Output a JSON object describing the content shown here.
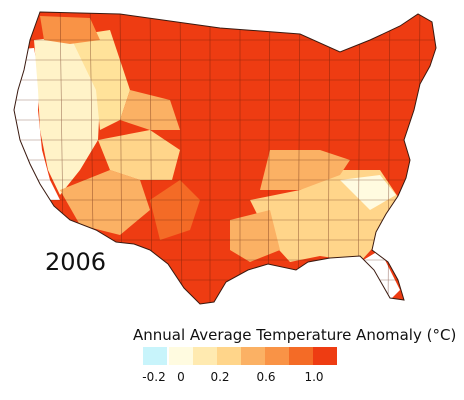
{
  "map": {
    "year_label": "2006",
    "legend": {
      "title": "Annual Average Temperature Anomaly (°C)",
      "swatches": [
        {
          "value_range": "-0.2",
          "color": "#c8f4fb"
        },
        {
          "value_range": "0",
          "color": "#fffbe0"
        },
        {
          "value_range": "0.1",
          "color": "#ffeab0"
        },
        {
          "value_range": "0.2",
          "color": "#ffd58a"
        },
        {
          "value_range": "0.4",
          "color": "#fbb164"
        },
        {
          "value_range": "0.6",
          "color": "#f99346"
        },
        {
          "value_range": "0.8",
          "color": "#f46b26"
        },
        {
          "value_range": "1.0",
          "color": "#ee3c12"
        }
      ],
      "tick_labels": [
        "-0.2",
        "0",
        "0.2",
        "0.6",
        "1.0"
      ]
    },
    "colors": {
      "ocean": "#ffffff",
      "border": "#5a1a0a",
      "hottest": "#ee3c12",
      "warm": "#f46b26",
      "mild": "#f99346",
      "light": "#ffd58a",
      "pale": "#fffbe0"
    }
  }
}
